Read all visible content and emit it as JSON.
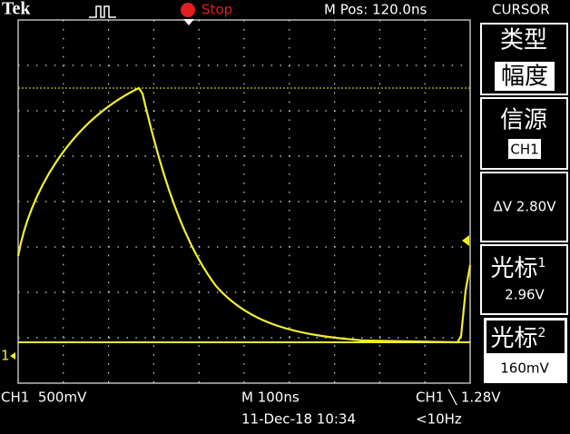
{
  "header": {
    "brand": "Tek",
    "status": "Stop",
    "position": "M Pos: 120.0ns"
  },
  "channel_marker": "1",
  "menu": {
    "title": "CURSOR",
    "items": [
      {
        "label": "类型",
        "value": "幅度"
      },
      {
        "label": "信源",
        "value": "CH1"
      },
      {
        "value": "ΔV 2.80V"
      },
      {
        "label": "光标",
        "superscript": "1",
        "value": "2.96V"
      },
      {
        "label": "光标",
        "superscript": "2",
        "value": "160mV"
      }
    ]
  },
  "footer": {
    "channel": "CH1  500mV",
    "timebase": "M 100ns",
    "trigger": "CH1 ╲ 1.28V",
    "date": "11-Dec-18 10:34",
    "frequency": "<10Hz"
  }
}
